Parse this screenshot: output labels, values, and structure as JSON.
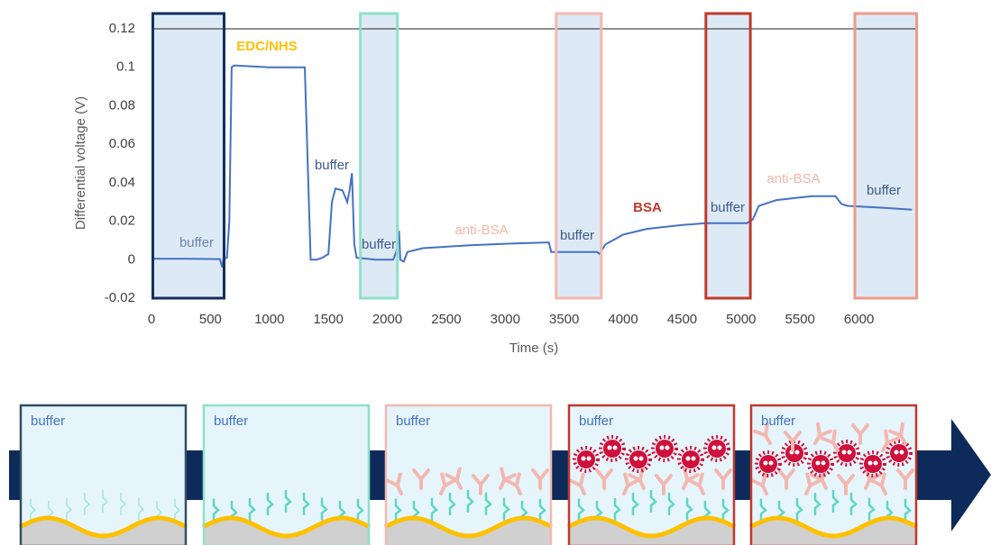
{
  "chart_data": {
    "type": "line",
    "x_label": "Time (s)",
    "y_label": "Differential voltage (V)",
    "x": [
      0,
      300,
      580,
      600,
      610,
      640,
      660,
      680,
      700,
      1000,
      1300,
      1320,
      1350,
      1400,
      1450,
      1500,
      1530,
      1560,
      1620,
      1660,
      1680,
      1700,
      1720,
      1740,
      1900,
      2050,
      2080,
      2100,
      2110,
      2140,
      2170,
      2300,
      2700,
      3100,
      3370,
      3390,
      3500,
      3780,
      3800,
      3850,
      4000,
      4200,
      4500,
      4700,
      4800,
      5050,
      5100,
      5150,
      5300,
      5600,
      5800,
      5850,
      5900,
      6200,
      6450
    ],
    "values": [
      0.0005,
      0.0005,
      0.0003,
      -0.004,
      0.0003,
      0.001,
      0.02,
      0.1,
      0.101,
      0.1,
      0.1,
      0.06,
      0.0,
      0.0,
      0.001,
      0.003,
      0.03,
      0.037,
      0.036,
      0.03,
      0.036,
      0.045,
      0.008,
      0.001,
      0.0,
      0.0,
      0.005,
      0.015,
      0.0,
      -0.001,
      0.004,
      0.006,
      0.0075,
      0.0085,
      0.009,
      0.004,
      0.004,
      0.004,
      0.003,
      0.008,
      0.013,
      0.016,
      0.018,
      0.019,
      0.019,
      0.019,
      0.021,
      0.028,
      0.031,
      0.033,
      0.033,
      0.029,
      0.028,
      0.027,
      0.026
    ],
    "color": "#4472c4",
    "xlim": [
      0,
      6500
    ],
    "ylim": [
      -0.02,
      0.12
    ],
    "xticks": [
      0,
      500,
      1000,
      1500,
      2000,
      2500,
      3000,
      3500,
      4000,
      4500,
      5000,
      5500,
      6000
    ],
    "yticks": [
      -0.02,
      0,
      0.02,
      0.04,
      0.06,
      0.08,
      0.1,
      0.12
    ],
    "regions": [
      {
        "x": [
          0,
          627
        ],
        "color": "#12305e"
      },
      {
        "x": [
          1760,
          2097
        ],
        "color": "#8fe0c8"
      },
      {
        "x": [
          3420,
          3826
        ],
        "color": "#f3b9b0"
      },
      {
        "x": [
          4690,
          5090
        ],
        "color": "#c0392b"
      },
      {
        "x": [
          5953,
          6500
        ],
        "color": "#ef9a8a"
      }
    ],
    "annotations": [
      {
        "text": "buffer",
        "color": "#6c86ad"
      },
      {
        "text": "EDC/NHS",
        "color": "#ffc000"
      },
      {
        "text": "buffer",
        "color": "#3e5a86"
      },
      {
        "text": "buffer",
        "color": "#3e5a86"
      },
      {
        "text": "anti-BSA",
        "color": "#f4b6a8"
      },
      {
        "text": "buffer",
        "color": "#3e5a86"
      },
      {
        "text": "BSA",
        "color": "#c0392b"
      },
      {
        "text": "buffer",
        "color": "#3e5a86"
      },
      {
        "text": "anti-BSA",
        "color": "#f4b6a8"
      },
      {
        "text": "buffer",
        "color": "#3e5a86"
      }
    ]
  },
  "diagram": {
    "panels": [
      {
        "label": "buffer",
        "border": "#2f4f66"
      },
      {
        "label": "buffer",
        "border": "#8fe0c8"
      },
      {
        "label": "buffer",
        "border": "#f3b9b0"
      },
      {
        "label": "buffer",
        "border": "#c0392b"
      },
      {
        "label": "buffer",
        "border": "#c0392b"
      }
    ]
  }
}
